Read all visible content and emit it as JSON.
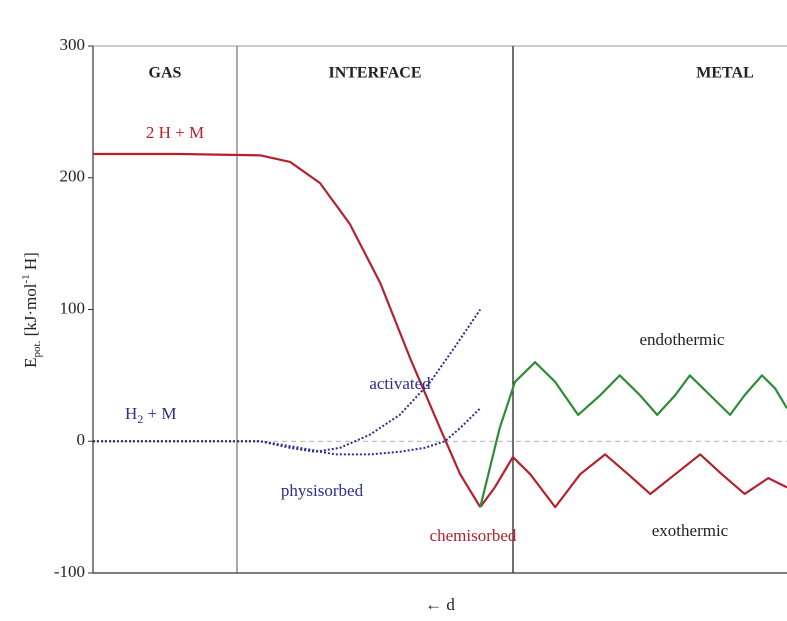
{
  "chart_data": {
    "type": "line",
    "regions": [
      "GAS",
      "INTERFACE",
      "METAL"
    ],
    "ylabel": {
      "main": "E",
      "sub": "pot.",
      "mid": " [kJ·mol",
      "sup": "-1",
      "end": " H]"
    },
    "xlabel": "← d",
    "annotations": {
      "h2": {
        "main": "H",
        "sub": "2",
        "end": " + M"
      },
      "chemisorbed": "chemisorbed"
    },
    "xlim": [
      0,
      100
    ],
    "ylim": [
      -100,
      300
    ],
    "yticks": [
      -100,
      0,
      100,
      200,
      300
    ],
    "series": [
      {
        "name": "2 H + M",
        "color": "#b3222e",
        "style": "solid",
        "x": [
          0,
          12.5,
          24.1,
          28.4,
          32.7,
          37.0,
          41.4,
          45.7,
          50.0,
          52.9,
          55.8
        ],
        "values": [
          218,
          218,
          217,
          212,
          196,
          165,
          120,
          63,
          10,
          -25,
          -50
        ]
      },
      {
        "name": "exothermic",
        "color": "#b3222e",
        "style": "solid",
        "x": [
          55.8,
          57.9,
          60.5,
          63.0,
          66.6,
          70.2,
          73.8,
          77.1,
          80.3,
          83.9,
          87.5,
          90.6,
          93.9,
          97.3,
          100
        ],
        "values": [
          -50,
          -35,
          -12,
          -25,
          -50,
          -25,
          -10,
          -25,
          -40,
          -25,
          -10,
          -25,
          -40,
          -28,
          -35
        ]
      },
      {
        "name": "endothermic",
        "color": "#2e8b3a",
        "style": "solid",
        "x": [
          55.8,
          57.2,
          58.6,
          60.8,
          63.7,
          66.6,
          69.9,
          73.1,
          75.9,
          78.8,
          81.3,
          83.9,
          86.0,
          88.9,
          91.8,
          93.9,
          96.4,
          98.3,
          100
        ],
        "values": [
          -50,
          -20,
          10,
          45,
          60,
          45,
          20,
          35,
          50,
          35,
          20,
          35,
          50,
          35,
          20,
          35,
          50,
          40,
          25
        ]
      },
      {
        "name": "activated",
        "color": "#2d2d8f",
        "style": "dotted",
        "x": [
          0,
          24.1,
          28.4,
          32.0,
          35.6,
          39.9,
          44.2,
          48.6,
          52.2,
          55.8
        ],
        "values": [
          0,
          0,
          -5,
          -8,
          -5,
          5,
          20,
          45,
          72,
          100
        ]
      },
      {
        "name": "physisorbed",
        "color": "#2d2d8f",
        "style": "dotted",
        "x": [
          0,
          24.1,
          29.8,
          34.9,
          39.9,
          44.2,
          47.8,
          50.7,
          52.9,
          55.8
        ],
        "values": [
          0,
          0,
          -5,
          -10,
          -10,
          -8,
          -5,
          0,
          10,
          25
        ]
      }
    ]
  }
}
